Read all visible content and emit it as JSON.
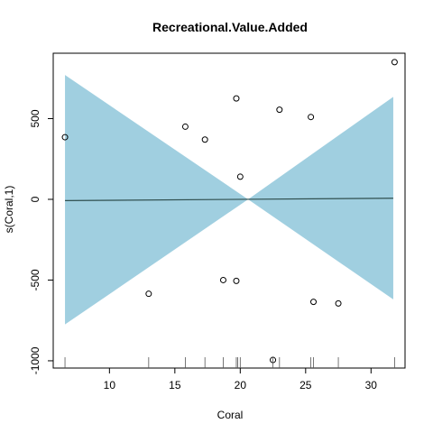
{
  "chart_data": {
    "type": "scatter",
    "title": "Recreational.Value.Added",
    "xlabel": "Coral",
    "ylabel": "s(Coral,1)",
    "xlim": [
      5.7,
      32.6
    ],
    "ylim": [
      -1045,
      905
    ],
    "x_ticks": [
      10,
      15,
      20,
      25,
      30
    ],
    "x_tick_labels": [
      "10",
      "15",
      "20",
      "25",
      "30"
    ],
    "y_ticks": [
      -1000,
      -500,
      0,
      500
    ],
    "y_tick_labels": [
      "-1000",
      "-500",
      "0",
      "500"
    ],
    "points": [
      {
        "x": 6.6,
        "y": 385
      },
      {
        "x": 13.0,
        "y": -585
      },
      {
        "x": 15.8,
        "y": 450
      },
      {
        "x": 17.3,
        "y": 370
      },
      {
        "x": 18.7,
        "y": -500
      },
      {
        "x": 19.7,
        "y": 625
      },
      {
        "x": 19.7,
        "y": -505
      },
      {
        "x": 20.0,
        "y": 140
      },
      {
        "x": 22.5,
        "y": -995
      },
      {
        "x": 23.0,
        "y": 555
      },
      {
        "x": 25.4,
        "y": 510
      },
      {
        "x": 25.6,
        "y": -635
      },
      {
        "x": 27.5,
        "y": -645
      },
      {
        "x": 31.8,
        "y": 850
      }
    ],
    "fit_line": {
      "x": [
        6.6,
        31.7
      ],
      "y": [
        -8,
        7
      ]
    },
    "confidence_band": {
      "x": [
        6.6,
        20.6,
        31.7
      ],
      "upper": [
        770,
        0,
        635
      ],
      "lower": [
        -775,
        0,
        -620
      ]
    },
    "rug": [
      6.6,
      13.0,
      15.8,
      17.3,
      18.7,
      19.7,
      19.8,
      20.0,
      22.5,
      23.0,
      25.4,
      25.6,
      27.5,
      31.8
    ],
    "colors": {
      "band": "#a0cfe0",
      "line": "#2f4f4f",
      "points": "#000000",
      "axis": "#000000"
    },
    "grid": false
  }
}
